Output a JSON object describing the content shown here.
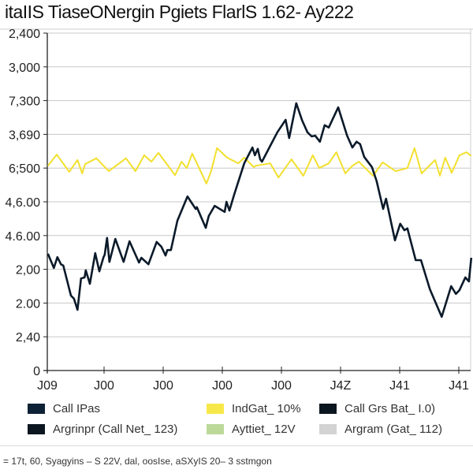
{
  "chart_data": {
    "type": "line",
    "title": "itaIIS TiaseONergin Pgiets FlarlS 1.62- Ay222",
    "y_tick_labels": [
      "0",
      "2,40",
      "2.00",
      "2,00",
      "4.6.00",
      "4,6.00",
      "6;500",
      "3,690",
      "7,300",
      "3,000",
      "2,400"
    ],
    "x_tick_labels": [
      "J09",
      "J00",
      "J00",
      "J00",
      "J00",
      "J4Z",
      "J41",
      "J41"
    ],
    "xlim": [
      0,
      7.2
    ],
    "ylim": [
      0,
      10
    ],
    "grid": true,
    "series": [
      {
        "color": "#0b1a2a",
        "points": [
          [
            0.05,
            3.46
          ],
          [
            0.15,
            3.04
          ],
          [
            0.21,
            3.36
          ],
          [
            0.27,
            3.15
          ],
          [
            0.31,
            3.11
          ],
          [
            0.44,
            2.22
          ],
          [
            0.49,
            2.13
          ],
          [
            0.55,
            1.8
          ],
          [
            0.61,
            2.73
          ],
          [
            0.67,
            2.76
          ],
          [
            0.69,
            2.97
          ],
          [
            0.76,
            2.57
          ],
          [
            0.85,
            3.48
          ],
          [
            0.92,
            2.94
          ],
          [
            0.99,
            3.36
          ],
          [
            1.01,
            3.43
          ],
          [
            1.05,
            3.93
          ],
          [
            1.09,
            3.22
          ],
          [
            1.19,
            3.9
          ],
          [
            1.33,
            3.22
          ],
          [
            1.43,
            3.83
          ],
          [
            1.59,
            3.2
          ],
          [
            1.63,
            3.34
          ],
          [
            1.75,
            3.15
          ],
          [
            1.89,
            3.81
          ],
          [
            1.97,
            3.67
          ],
          [
            2.04,
            3.41
          ],
          [
            2.07,
            3.57
          ],
          [
            2.13,
            3.57
          ],
          [
            2.24,
            4.44
          ],
          [
            2.41,
            5.16
          ],
          [
            2.55,
            4.79
          ],
          [
            2.57,
            4.84
          ],
          [
            2.72,
            4.23
          ],
          [
            2.77,
            4.58
          ],
          [
            2.87,
            4.88
          ],
          [
            3.04,
            4.7
          ],
          [
            3.07,
            5.0
          ],
          [
            3.12,
            4.74
          ],
          [
            3.2,
            5.21
          ],
          [
            3.37,
            6.14
          ],
          [
            3.51,
            6.61
          ],
          [
            3.55,
            6.38
          ],
          [
            3.6,
            6.57
          ],
          [
            3.64,
            6.26
          ],
          [
            3.67,
            6.19
          ],
          [
            3.81,
            6.66
          ],
          [
            3.93,
            7.06
          ],
          [
            4.07,
            7.43
          ],
          [
            4.13,
            6.89
          ],
          [
            4.25,
            7.92
          ],
          [
            4.35,
            7.41
          ],
          [
            4.44,
            7.06
          ],
          [
            4.51,
            6.94
          ],
          [
            4.57,
            6.96
          ],
          [
            4.65,
            6.78
          ],
          [
            4.73,
            7.27
          ],
          [
            4.8,
            7.2
          ],
          [
            4.96,
            7.8
          ],
          [
            5.11,
            6.96
          ],
          [
            5.2,
            6.61
          ],
          [
            5.27,
            6.78
          ],
          [
            5.33,
            6.71
          ],
          [
            5.4,
            6.33
          ],
          [
            5.53,
            6.03
          ],
          [
            5.61,
            5.61
          ],
          [
            5.72,
            4.79
          ],
          [
            5.77,
            5.09
          ],
          [
            5.92,
            3.86
          ],
          [
            6.01,
            4.35
          ],
          [
            6.08,
            4.16
          ],
          [
            6.13,
            4.21
          ],
          [
            6.27,
            3.27
          ],
          [
            6.36,
            3.27
          ],
          [
            6.51,
            2.41
          ],
          [
            6.71,
            1.59
          ],
          [
            6.87,
            2.5
          ],
          [
            6.95,
            2.27
          ],
          [
            7.01,
            2.38
          ],
          [
            7.11,
            2.76
          ],
          [
            7.17,
            2.64
          ],
          [
            7.21,
            3.34
          ]
        ]
      },
      {
        "color": "#f2e02e",
        "points": [
          [
            0.05,
            6.07
          ],
          [
            0.2,
            6.4
          ],
          [
            0.41,
            5.89
          ],
          [
            0.55,
            6.24
          ],
          [
            0.63,
            5.84
          ],
          [
            0.68,
            6.12
          ],
          [
            0.87,
            6.29
          ],
          [
            1.08,
            5.91
          ],
          [
            1.37,
            6.29
          ],
          [
            1.53,
            5.91
          ],
          [
            1.68,
            6.38
          ],
          [
            1.8,
            6.19
          ],
          [
            1.92,
            6.45
          ],
          [
            2.2,
            5.79
          ],
          [
            2.31,
            6.19
          ],
          [
            2.4,
            6.0
          ],
          [
            2.49,
            6.43
          ],
          [
            2.6,
            6.03
          ],
          [
            2.73,
            5.54
          ],
          [
            2.81,
            5.91
          ],
          [
            2.91,
            6.59
          ],
          [
            3.08,
            6.31
          ],
          [
            3.27,
            6.14
          ],
          [
            3.37,
            6.31
          ],
          [
            3.53,
            6.03
          ],
          [
            3.57,
            6.07
          ],
          [
            3.81,
            6.14
          ],
          [
            3.95,
            5.72
          ],
          [
            4.17,
            6.26
          ],
          [
            4.37,
            5.77
          ],
          [
            4.53,
            6.38
          ],
          [
            4.64,
            6.0
          ],
          [
            4.8,
            6.14
          ],
          [
            4.93,
            6.47
          ],
          [
            5.08,
            5.84
          ],
          [
            5.2,
            6.07
          ],
          [
            5.31,
            6.19
          ],
          [
            5.55,
            5.77
          ],
          [
            5.71,
            6.17
          ],
          [
            5.93,
            5.91
          ],
          [
            6.13,
            6.0
          ],
          [
            6.25,
            6.59
          ],
          [
            6.37,
            5.84
          ],
          [
            6.6,
            6.24
          ],
          [
            6.68,
            5.77
          ],
          [
            6.77,
            6.31
          ],
          [
            6.88,
            5.86
          ],
          [
            7.01,
            6.38
          ],
          [
            7.13,
            6.47
          ],
          [
            7.21,
            6.36
          ]
        ]
      }
    ],
    "legend": [
      {
        "label": "Call IPas",
        "color": "#0e2236"
      },
      {
        "label": "IndGat_ 10%",
        "color": "#f7e84a"
      },
      {
        "label": "Call Grs Bat_ I.0)",
        "color": "#0b1620"
      },
      {
        "label": "Argrinpr (Call Net_ 123)",
        "color": "#0b1620"
      },
      {
        "label": "Ayttiet_ 12V",
        "color": "#bcd99a"
      },
      {
        "label": "Argram (Gat_ 112)",
        "color": "#d3d3d3"
      }
    ],
    "legend_placement": "bottom"
  },
  "footer": "= 17t, 60, Syagyins – S 22V, dal, oosIse, aSXyIS 20– 3 sstmgon"
}
